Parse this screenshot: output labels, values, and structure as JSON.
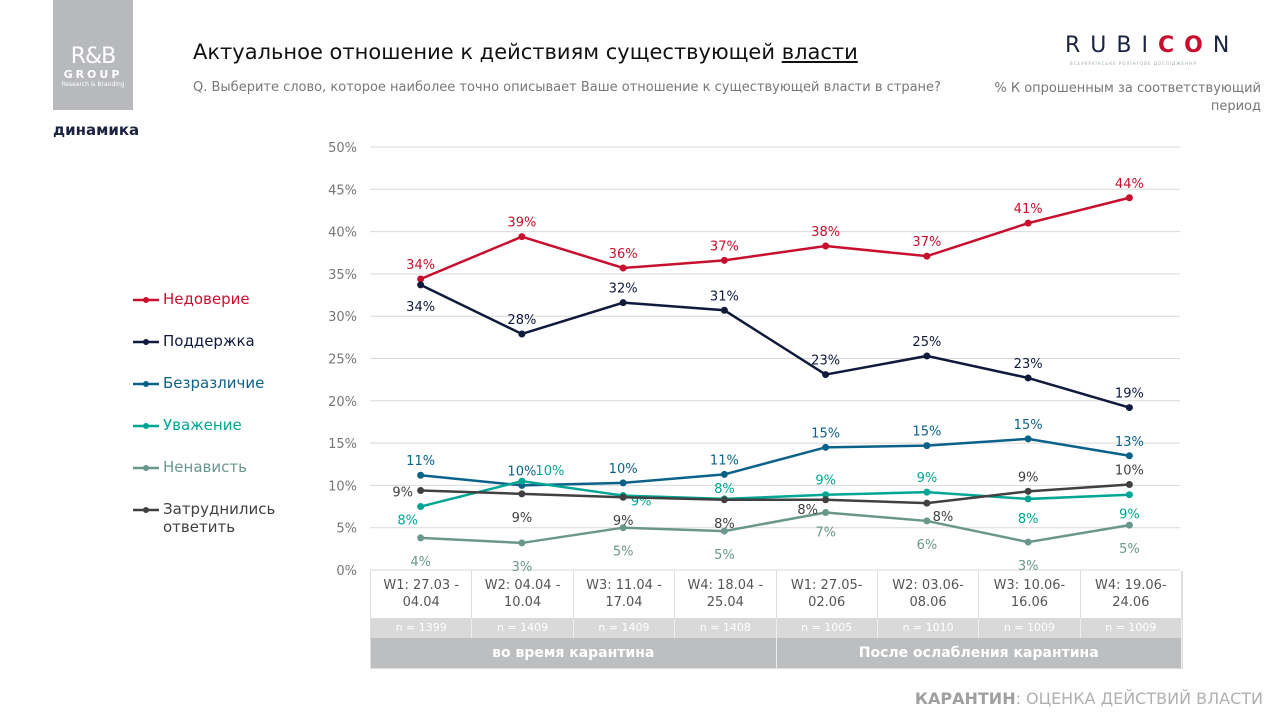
{
  "logo": {
    "line1": "R&B",
    "line2": "GROUP",
    "line3": "Research & Branding"
  },
  "subtitle_left": "динамика",
  "title": {
    "main": "Актуальное отношение к действиям существующей ",
    "underlined": "власти"
  },
  "question": "Q. Выберите слово, которое наиболее точно описывает Ваше отношение к существующей власти в стране?",
  "brand": {
    "name_a": "RUBI",
    "name_b": "CO",
    "name_c": "N",
    "tagline": "ВСЕУКРАЇНСЬКЕ РОЛІНГОВЕ ДОСЛІДЖЕННЯ"
  },
  "note": "% К опрошенным за соответствующий период",
  "footer": {
    "bold": "КАРАНТИН",
    "rest": ": ОЦЕНКА ДЕЙСТВИЙ ВЛАСТИ"
  },
  "chart_data": {
    "type": "line",
    "ylim": [
      0,
      50
    ],
    "yticks": [
      "0%",
      "5%",
      "10%",
      "15%",
      "20%",
      "25%",
      "30%",
      "35%",
      "40%",
      "45%",
      "50%"
    ],
    "grid": true,
    "legend_position": "left",
    "categories": [
      "W1: 27.03 - 04.04",
      "W2: 04.04 - 10.04",
      "W3: 11.04 - 17.04",
      "W4: 18.04 - 25.04",
      "W1: 27.05- 02.06",
      "W2: 03.06- 08.06",
      "W3: 10.06- 16.06",
      "W4: 19.06- 24.06"
    ],
    "n": [
      "n = 1399",
      "n = 1409",
      "n = 1409",
      "n = 1408",
      "n = 1005",
      "n = 1010",
      "n = 1009",
      "n = 1009"
    ],
    "groups": [
      "во время карантина",
      "После ослабления карантина"
    ],
    "series": [
      {
        "name": "Недоверие",
        "color": "#c8102e",
        "values": [
          34.4,
          39.4,
          35.7,
          36.6,
          38.3,
          37.1,
          41,
          44
        ],
        "labels": [
          "34%",
          "39%",
          "36%",
          "37%",
          "38%",
          "37%",
          "41%",
          "44%"
        ]
      },
      {
        "name": "Поддержка",
        "color": "#0f1a3c",
        "values": [
          33.7,
          27.9,
          31.6,
          30.7,
          23.1,
          25.3,
          22.7,
          19.2
        ],
        "labels": [
          "34%",
          "28%",
          "32%",
          "31%",
          "23%",
          "25%",
          "23%",
          "19%"
        ]
      },
      {
        "name": "Безразличие",
        "color": "#0b6289",
        "values": [
          11.2,
          10,
          10.3,
          11.3,
          14.5,
          14.7,
          15.5,
          13.5
        ],
        "labels": [
          "11%",
          "10%",
          "10%",
          "11%",
          "15%",
          "15%",
          "15%",
          "13%"
        ]
      },
      {
        "name": "Уважение",
        "color": "#00a694",
        "values": [
          7.5,
          10.5,
          8.8,
          8.4,
          8.9,
          9.2,
          8.4,
          8.9
        ],
        "labels": [
          "8%",
          "10%",
          "9%",
          "8%",
          "9%",
          "9%",
          "8%",
          "9%"
        ]
      },
      {
        "name": "Ненависть",
        "color": "#6a978c",
        "values": [
          3.8,
          3.2,
          5,
          4.6,
          6.8,
          5.8,
          3.3,
          5.3
        ],
        "labels": [
          "4%",
          "3%",
          "5%",
          "5%",
          "7%",
          "6%",
          "3%",
          "5%"
        ]
      },
      {
        "name": "Затруднились ответить",
        "color": "#404040",
        "values": [
          9.4,
          9,
          8.6,
          8.3,
          8.3,
          7.9,
          9.3,
          10.1
        ],
        "labels": [
          "9%",
          "9%",
          "9%",
          "8%",
          "8%",
          "8%",
          "9%",
          "10%"
        ]
      }
    ]
  }
}
